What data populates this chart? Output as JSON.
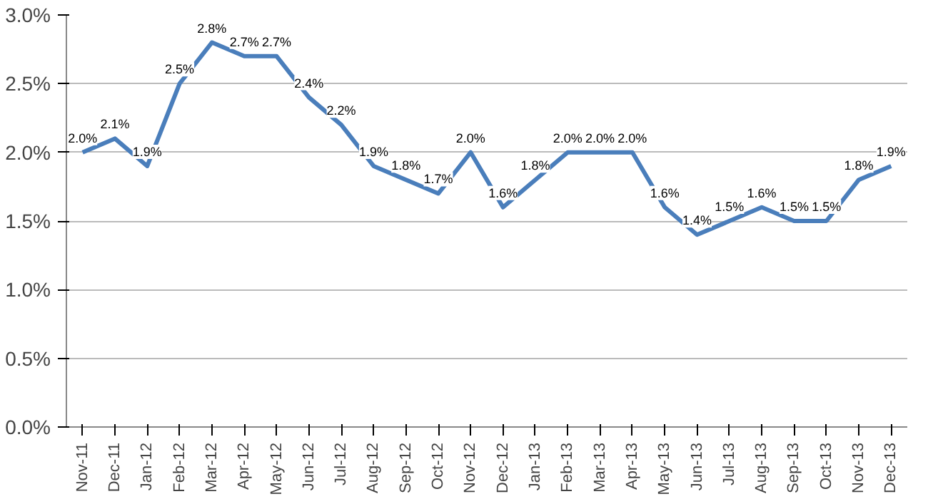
{
  "chart_data": {
    "type": "line",
    "categories": [
      "Nov-11",
      "Dec-11",
      "Jan-12",
      "Feb-12",
      "Mar-12",
      "Apr-12",
      "May-12",
      "Jun-12",
      "Jul-12",
      "Aug-12",
      "Sep-12",
      "Oct-12",
      "Nov-12",
      "Dec-12",
      "Jan-13",
      "Feb-13",
      "Mar-13",
      "Apr-13",
      "May-13",
      "Jun-13",
      "Jul-13",
      "Aug-13",
      "Sep-13",
      "Oct-13",
      "Nov-13",
      "Dec-13"
    ],
    "series": [
      {
        "color": "#4a7ebb",
        "values": [
          2.0,
          2.1,
          1.9,
          2.5,
          2.8,
          2.7,
          2.7,
          2.4,
          2.2,
          1.9,
          1.8,
          1.7,
          2.0,
          1.6,
          1.8,
          2.0,
          2.0,
          2.0,
          1.6,
          1.4,
          1.5,
          1.6,
          1.5,
          1.5,
          1.8,
          1.9
        ],
        "value_labels": [
          "2.0%",
          "2.1%",
          "1.9%",
          "2.5%",
          "2.8%",
          "2.7%",
          "2.7%",
          "2.4%",
          "2.2%",
          "1.9%",
          "1.8%",
          "1.7%",
          "2.0%",
          "1.6%",
          "1.8%",
          "2.0%",
          "2.0%",
          "2.0%",
          "1.6%",
          "1.4%",
          "1.5%",
          "1.6%",
          "1.5%",
          "1.5%",
          "1.8%",
          "1.9%"
        ]
      }
    ],
    "ylim": [
      0,
      3
    ],
    "yticks": [
      {
        "value": 0,
        "label": "0.0%"
      },
      {
        "value": 0.5,
        "label": "0.5%"
      },
      {
        "value": 1,
        "label": "1.0%"
      },
      {
        "value": 1.5,
        "label": "1.5%"
      },
      {
        "value": 2,
        "label": "2.0%"
      },
      {
        "value": 2.5,
        "label": "2.5%"
      },
      {
        "value": 3,
        "label": "3.0%"
      }
    ],
    "grid": "y",
    "marker": "none",
    "line_style": "solid"
  }
}
